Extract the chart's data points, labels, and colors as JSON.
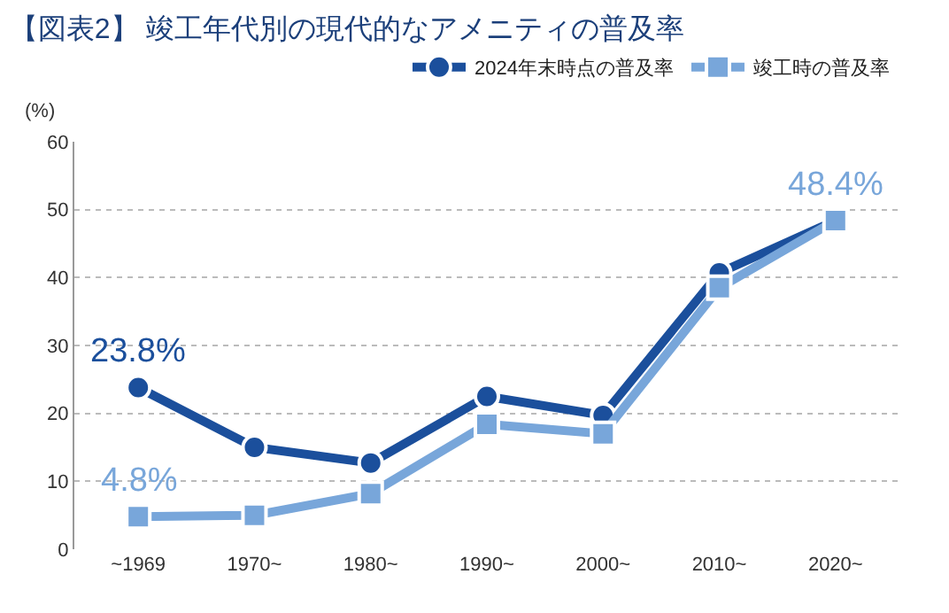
{
  "chart_data": {
    "type": "line",
    "title": "【図表2】 竣工年代別の現代的なアメニティの普及率",
    "ylabel": "(%)",
    "categories": [
      "~1969",
      "1970~",
      "1980~",
      "1990~",
      "2000~",
      "2010~",
      "2020~"
    ],
    "series": [
      {
        "name": "2024年末時点の普及率",
        "color": "#1b4f9c",
        "marker": "circle",
        "values": [
          23.8,
          15.0,
          12.7,
          22.5,
          19.7,
          40.7,
          48.4
        ],
        "value_labels": [
          "23.8%",
          null,
          null,
          null,
          null,
          null,
          null
        ]
      },
      {
        "name": "竣工時の普及率",
        "color": "#78a6da",
        "marker": "square",
        "values": [
          4.8,
          5.0,
          8.2,
          18.4,
          17.0,
          38.5,
          48.4
        ],
        "value_labels": [
          "4.8%",
          null,
          null,
          null,
          null,
          null,
          "48.4%"
        ]
      }
    ],
    "ylim": [
      0,
      60
    ],
    "yticks": [
      0,
      10,
      20,
      30,
      40,
      50,
      60
    ],
    "grid": "y",
    "legend": "top right",
    "line_style": "solid"
  }
}
